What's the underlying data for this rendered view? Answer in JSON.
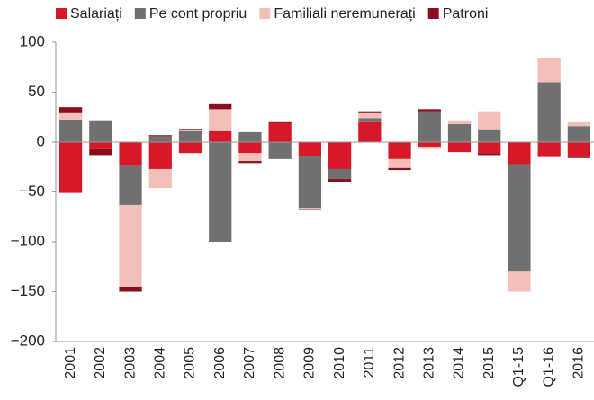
{
  "chart_data": {
    "type": "stacked_bar",
    "categories": [
      "2001",
      "2002",
      "2003",
      "2004",
      "2005",
      "2006",
      "2007",
      "2008",
      "2009",
      "2010",
      "2011",
      "2012",
      "2013",
      "2014",
      "2015",
      "Q1-15",
      "Q1-16",
      "2016"
    ],
    "series": [
      {
        "name": "Salariați",
        "color": "#d7182a",
        "values": [
          -51,
          -7,
          -24,
          -27,
          -11,
          11,
          -11,
          19,
          -14,
          -27,
          20,
          -17,
          -5,
          -10,
          -11,
          -23,
          -15,
          -15
        ]
      },
      {
        "name": "Pe cont propriu",
        "color": "#707070",
        "values": [
          22,
          21,
          -39,
          6,
          11,
          -100,
          10,
          -17,
          -52,
          -10,
          4,
          0,
          30,
          18,
          12,
          -107,
          60,
          16
        ]
      },
      {
        "name": "Familiali neremunerați",
        "color": "#f2c0b9",
        "values": [
          7,
          0,
          -82,
          -19,
          1,
          22,
          -8,
          0,
          -1,
          0,
          5,
          -9,
          -2,
          3,
          18,
          -20,
          24,
          4
        ]
      },
      {
        "name": "Patroni",
        "color": "#8b0c1a",
        "values": [
          6,
          -6,
          -5,
          1,
          1,
          5,
          -2,
          1,
          -1,
          -3,
          1,
          -2,
          3,
          0,
          -2,
          0,
          0,
          -1
        ]
      }
    ],
    "ylim": [
      -200,
      100
    ],
    "yticks": [
      {
        "value": -200,
        "label": "−200"
      },
      {
        "value": -150,
        "label": "−150"
      },
      {
        "value": -100,
        "label": "−100"
      },
      {
        "value": -50,
        "label": "−50"
      },
      0,
      50,
      100
    ],
    "legend": "top"
  }
}
